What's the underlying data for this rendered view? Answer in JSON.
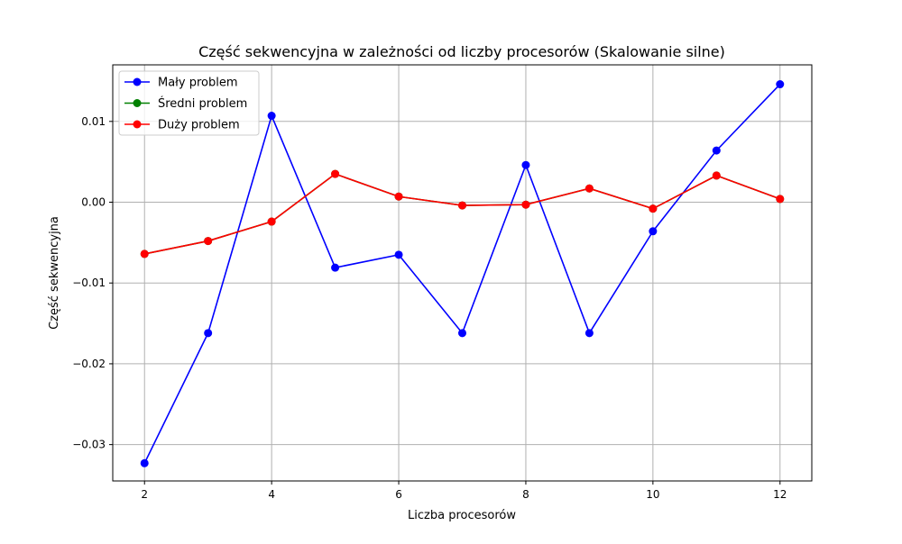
{
  "chart_data": {
    "type": "line",
    "title": "Część sekwencyjna w zależności od liczby procesorów (Skalowanie silne)",
    "xlabel": "Liczba procesorów",
    "ylabel": "Część sekwencyjna",
    "x": [
      2,
      3,
      4,
      5,
      6,
      7,
      8,
      9,
      10,
      11,
      12
    ],
    "xlim": [
      1.5,
      12.5
    ],
    "ylim": [
      -0.0345,
      0.017
    ],
    "xticks": [
      2,
      4,
      6,
      8,
      10,
      12
    ],
    "xtick_labels": [
      "2",
      "4",
      "6",
      "8",
      "10",
      "12"
    ],
    "yticks": [
      -0.03,
      -0.02,
      -0.01,
      0.0,
      0.01
    ],
    "ytick_labels": [
      "−0.03",
      "−0.02",
      "−0.01",
      "0.00",
      "0.01"
    ],
    "grid": true,
    "legend_position": "top-left",
    "series": [
      {
        "name": "Mały problem",
        "color": "#0000ff",
        "marker": "circle",
        "values": [
          -0.0323,
          -0.0162,
          0.0107,
          -0.0081,
          -0.0065,
          -0.0162,
          0.0046,
          -0.0162,
          -0.0036,
          0.0064,
          0.0146
        ]
      },
      {
        "name": "Średni problem",
        "color": "#008000",
        "marker": "circle",
        "values": [
          -0.0064,
          -0.0048,
          -0.0024,
          0.0035,
          0.0007,
          -0.0004,
          -0.0003,
          0.0017,
          -0.0008,
          0.0033,
          0.0004
        ]
      },
      {
        "name": "Duży problem",
        "color": "#ff0000",
        "marker": "circle",
        "values": [
          -0.0064,
          -0.0048,
          -0.0024,
          0.0035,
          0.0007,
          -0.0004,
          -0.0003,
          0.0017,
          -0.0008,
          0.0033,
          0.0004
        ]
      }
    ]
  }
}
